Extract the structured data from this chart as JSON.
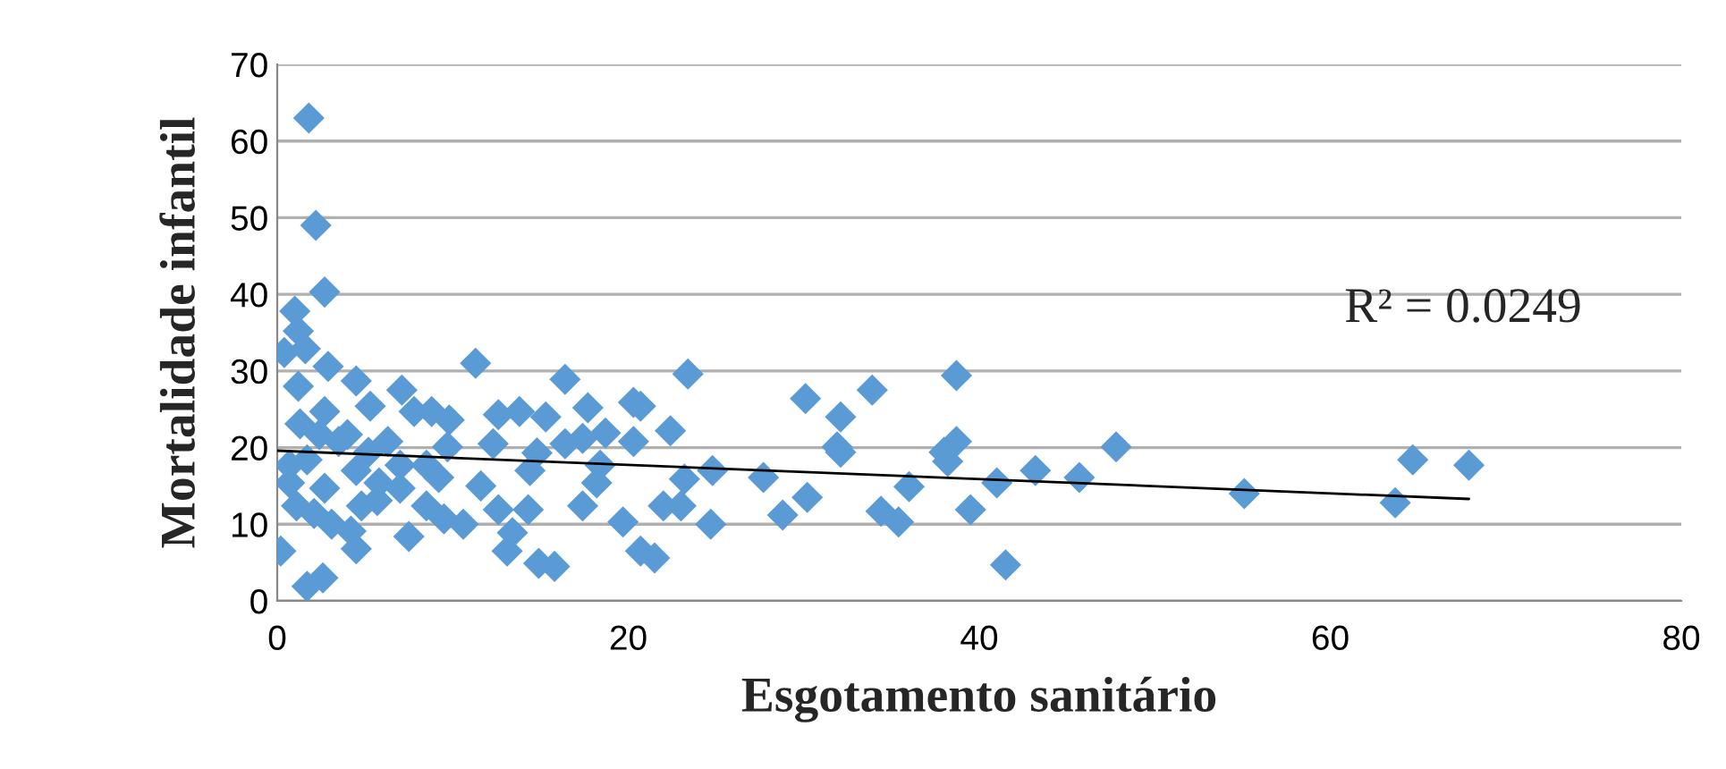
{
  "chart_data": {
    "type": "scatter",
    "xlabel": "Esgotamento sanitário",
    "ylabel": "Mortalidade infantil",
    "annotations": [
      "R² = 0.0249"
    ],
    "xlim": [
      0,
      80
    ],
    "ylim": [
      0,
      70
    ],
    "xticks": [
      0,
      20,
      40,
      60,
      80
    ],
    "yticks": [
      0,
      10,
      20,
      30,
      40,
      50,
      60,
      70
    ],
    "grid": "y",
    "series": [
      {
        "marker": "diamond",
        "color": "#5b9bd5",
        "x": [
          1.8,
          2.2,
          2.7,
          1.0,
          1.2,
          0.4,
          1.6,
          2.9,
          11.3,
          1.2,
          4.5,
          5.3,
          7.1,
          7.8,
          8.8,
          9.8,
          1.3,
          2.7,
          3.5,
          0.7,
          1.7,
          2.4,
          4.0,
          5.2,
          6.3,
          7.0,
          8.5,
          9.7,
          0.7,
          2.7,
          4.5,
          5.8,
          7.0,
          9.2,
          1.1,
          2.1,
          3.1,
          4.8,
          5.7,
          8.5,
          9.5,
          10.6,
          4.2,
          4.5,
          7.5,
          0.2,
          1.7,
          2.6,
          12.6,
          13.8,
          15.3,
          12.3,
          14.8,
          14.4,
          11.6,
          12.6,
          14.3,
          13.4,
          13.1,
          14.9,
          15.8,
          16.4,
          17.7,
          16.4,
          17.4,
          18.7,
          18.4,
          18.2,
          17.4,
          20.3,
          20.7,
          20.3,
          19.7,
          20.7,
          21.5,
          23.4,
          22.4,
          23.2,
          22.0,
          23.0,
          24.8,
          24.7,
          27.7,
          28.8,
          30.2,
          30.1,
          32.1,
          31.9,
          32.1,
          33.9,
          34.4,
          35.4,
          36.0,
          38.7,
          38.0,
          38.7,
          38.2,
          39.5,
          41.0,
          41.5,
          43.2,
          45.7,
          47.8,
          55.1,
          63.7,
          64.7,
          67.9
        ],
        "values": [
          63,
          49,
          40.3,
          37.8,
          35.2,
          32.4,
          32.9,
          30.6,
          31,
          28,
          28.7,
          25.4,
          27.5,
          24.7,
          24.7,
          23.6,
          23.1,
          24.7,
          20.8,
          17.7,
          18.4,
          21.7,
          21.7,
          19.4,
          20.8,
          17.7,
          17.7,
          20.1,
          15.4,
          14.7,
          17,
          15.4,
          14.7,
          16.1,
          12.4,
          11.4,
          10,
          12.4,
          13.1,
          12.4,
          10.7,
          10,
          9.1,
          6.8,
          8.4,
          6.5,
          1.9,
          3,
          24.3,
          24.7,
          24,
          20.5,
          19.3,
          17,
          15,
          11.9,
          11.9,
          8.9,
          6.5,
          4.9,
          4.5,
          28.9,
          25.2,
          20.5,
          21.2,
          21.9,
          17.7,
          15.4,
          12.4,
          25.9,
          25.4,
          20.8,
          10.3,
          6.5,
          5.6,
          29.6,
          22.2,
          15.9,
          12.4,
          12.4,
          17,
          10,
          16.1,
          11.2,
          13.5,
          26.4,
          24,
          20.1,
          19.4,
          27.5,
          11.7,
          10.3,
          14.9,
          29.4,
          19.4,
          20.8,
          18.2,
          11.9,
          15.4,
          4.7,
          17,
          16.1,
          20.1,
          14,
          12.8,
          18.4,
          17.7
        ]
      },
      {
        "type": "line",
        "marker": "none",
        "color": "#000000",
        "x": [
          0,
          67.9
        ],
        "values": [
          19.6,
          13.3
        ]
      }
    ]
  }
}
